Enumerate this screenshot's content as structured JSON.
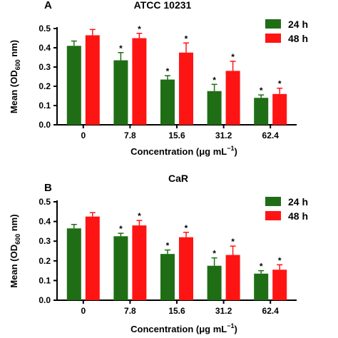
{
  "colors": {
    "24 h": "#1f6e15",
    "48 h": "#ff1414",
    "axis": "#000000"
  },
  "chart_data": [
    {
      "type": "bar",
      "panel": "A",
      "title": "ATCC 10231",
      "xlabel": "Concentration (μg mL",
      "xlabel_sup": "−1",
      "xlabel_end": ")",
      "ylabel": "Mean (OD",
      "ylabel_sub": "600",
      "ylabel_end": " nm)",
      "categories": [
        "0",
        "7.8",
        "15.6",
        "31.2",
        "62.4"
      ],
      "ylim": [
        0,
        0.5
      ],
      "yticks": [
        "0.0",
        "0.1",
        "0.2",
        "0.3",
        "0.4",
        "0.5"
      ],
      "legend_position": "top-right",
      "series": [
        {
          "name": "24 h",
          "values": [
            0.41,
            0.335,
            0.235,
            0.175,
            0.14
          ],
          "errors": [
            0.025,
            0.04,
            0.02,
            0.035,
            0.015
          ],
          "significant": [
            false,
            true,
            true,
            true,
            true
          ]
        },
        {
          "name": "48 h",
          "values": [
            0.465,
            0.45,
            0.375,
            0.28,
            0.16
          ],
          "errors": [
            0.03,
            0.025,
            0.05,
            0.05,
            0.03
          ],
          "significant": [
            false,
            true,
            true,
            true,
            true
          ]
        }
      ]
    },
    {
      "type": "bar",
      "panel": "B",
      "title": "CaR",
      "xlabel": "Concentration (μg mL",
      "xlabel_sup": "−1",
      "xlabel_end": ")",
      "ylabel": "Mean (OD",
      "ylabel_sub": "600",
      "ylabel_end": " nm)",
      "categories": [
        "0",
        "7.8",
        "15.6",
        "31.2",
        "62.4"
      ],
      "ylim": [
        0,
        0.5
      ],
      "yticks": [
        "0.0",
        "0.1",
        "0.2",
        "0.3",
        "0.4",
        "0.5"
      ],
      "legend_position": "top-right",
      "series": [
        {
          "name": "24 h",
          "values": [
            0.365,
            0.325,
            0.235,
            0.175,
            0.135
          ],
          "errors": [
            0.02,
            0.015,
            0.02,
            0.04,
            0.015
          ],
          "significant": [
            false,
            true,
            true,
            true,
            true
          ]
        },
        {
          "name": "48 h",
          "values": [
            0.425,
            0.38,
            0.32,
            0.23,
            0.155
          ],
          "errors": [
            0.02,
            0.025,
            0.025,
            0.045,
            0.025
          ],
          "significant": [
            false,
            true,
            true,
            true,
            true
          ]
        }
      ]
    }
  ]
}
